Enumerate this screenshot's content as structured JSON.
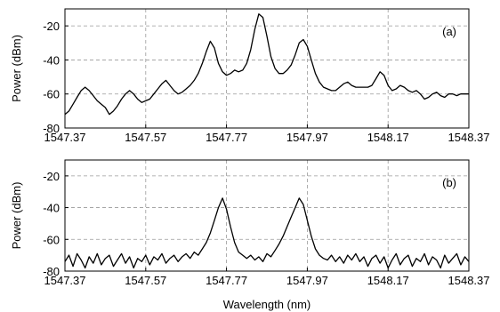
{
  "chart_data": [
    {
      "type": "line",
      "panel_label": "(a)",
      "xlabel": "",
      "ylabel": "Power (dBm)",
      "xlim": [
        1547.37,
        1548.37
      ],
      "ylim": [
        -80,
        -10
      ],
      "xticks": [
        "1547.37",
        "1547.57",
        "1547.77",
        "1547.97",
        "1548.17",
        "1548.37"
      ],
      "yticks": [
        "-20",
        "-40",
        "-60",
        "-80"
      ],
      "ytick_values": [
        -20,
        -40,
        -60,
        -80
      ],
      "grid": true,
      "series": [
        {
          "x": [
            1547.37,
            1547.38,
            1547.39,
            1547.4,
            1547.41,
            1547.42,
            1547.43,
            1547.44,
            1547.45,
            1547.46,
            1547.47,
            1547.48,
            1547.49,
            1547.5,
            1547.51,
            1547.52,
            1547.53,
            1547.54,
            1547.55,
            1547.56,
            1547.57,
            1547.58,
            1547.59,
            1547.6,
            1547.61,
            1547.62,
            1547.63,
            1547.64,
            1547.65,
            1547.66,
            1547.67,
            1547.68,
            1547.69,
            1547.7,
            1547.71,
            1547.72,
            1547.73,
            1547.74,
            1547.75,
            1547.76,
            1547.77,
            1547.78,
            1547.79,
            1547.8,
            1547.81,
            1547.82,
            1547.83,
            1547.84,
            1547.85,
            1547.86,
            1547.87,
            1547.88,
            1547.89,
            1547.9,
            1547.91,
            1547.92,
            1547.93,
            1547.94,
            1547.95,
            1547.96,
            1547.97,
            1547.98,
            1547.99,
            1548.0,
            1548.01,
            1548.02,
            1548.03,
            1548.04,
            1548.05,
            1548.06,
            1548.07,
            1548.08,
            1548.09,
            1548.1,
            1548.11,
            1548.12,
            1548.13,
            1548.14,
            1548.15,
            1548.16,
            1548.17,
            1548.18,
            1548.19,
            1548.2,
            1548.21,
            1548.22,
            1548.23,
            1548.24,
            1548.25,
            1548.26,
            1548.27,
            1548.28,
            1548.29,
            1548.3,
            1548.31,
            1548.32,
            1548.33,
            1548.34,
            1548.35,
            1548.36,
            1548.37
          ],
          "y": [
            -72,
            -70,
            -66,
            -62,
            -58,
            -56,
            -58,
            -61,
            -64,
            -66,
            -68,
            -72,
            -70,
            -67,
            -63,
            -60,
            -58,
            -60,
            -63,
            -65,
            -64,
            -63,
            -60,
            -57,
            -54,
            -52,
            -55,
            -58,
            -60,
            -59,
            -57,
            -55,
            -52,
            -48,
            -42,
            -35,
            -29,
            -33,
            -42,
            -47,
            -49,
            -48,
            -46,
            -47,
            -46,
            -42,
            -34,
            -22,
            -13,
            -15,
            -26,
            -38,
            -45,
            -48,
            -48,
            -46,
            -43,
            -37,
            -30,
            -28,
            -32,
            -40,
            -48,
            -53,
            -56,
            -57,
            -58,
            -58,
            -56,
            -54,
            -53,
            -55,
            -56,
            -56,
            -56,
            -56,
            -55,
            -51,
            -47,
            -49,
            -55,
            -58,
            -57,
            -55,
            -56,
            -58,
            -59,
            -58,
            -60,
            -63,
            -62,
            -60,
            -59,
            -61,
            -62,
            -60,
            -60,
            -61,
            -60,
            -60,
            -60
          ]
        }
      ]
    },
    {
      "type": "line",
      "panel_label": "(b)",
      "xlabel": "Wavelength (nm)",
      "ylabel": "Power (dBm)",
      "xlim": [
        1547.37,
        1548.37
      ],
      "ylim": [
        -80,
        -10
      ],
      "xticks": [
        "1547.37",
        "1547.57",
        "1547.77",
        "1547.97",
        "1548.17",
        "1548.37"
      ],
      "yticks": [
        "-20",
        "-40",
        "-60",
        "-80"
      ],
      "ytick_values": [
        -20,
        -40,
        -60,
        -80
      ],
      "grid": true,
      "series": [
        {
          "x": [
            1547.37,
            1547.38,
            1547.39,
            1547.4,
            1547.41,
            1547.42,
            1547.43,
            1547.44,
            1547.45,
            1547.46,
            1547.47,
            1547.48,
            1547.49,
            1547.5,
            1547.51,
            1547.52,
            1547.53,
            1547.54,
            1547.55,
            1547.56,
            1547.57,
            1547.58,
            1547.59,
            1547.6,
            1547.61,
            1547.62,
            1547.63,
            1547.64,
            1547.65,
            1547.66,
            1547.67,
            1547.68,
            1547.69,
            1547.7,
            1547.71,
            1547.72,
            1547.73,
            1547.74,
            1547.75,
            1547.76,
            1547.77,
            1547.78,
            1547.79,
            1547.8,
            1547.81,
            1547.82,
            1547.83,
            1547.84,
            1547.85,
            1547.86,
            1547.87,
            1547.88,
            1547.89,
            1547.9,
            1547.91,
            1547.92,
            1547.93,
            1547.94,
            1547.95,
            1547.96,
            1547.97,
            1547.98,
            1547.99,
            1548.0,
            1548.01,
            1548.02,
            1548.03,
            1548.04,
            1548.05,
            1548.06,
            1548.07,
            1548.08,
            1548.09,
            1548.1,
            1548.11,
            1548.12,
            1548.13,
            1548.14,
            1548.15,
            1548.16,
            1548.17,
            1548.18,
            1548.19,
            1548.2,
            1548.21,
            1548.22,
            1548.23,
            1548.24,
            1548.25,
            1548.26,
            1548.27,
            1548.28,
            1548.29,
            1548.3,
            1548.31,
            1548.32,
            1548.33,
            1548.34,
            1548.35,
            1548.36,
            1548.37
          ],
          "y": [
            -74,
            -70,
            -77,
            -69,
            -73,
            -78,
            -71,
            -75,
            -69,
            -76,
            -72,
            -70,
            -77,
            -73,
            -69,
            -75,
            -71,
            -78,
            -72,
            -74,
            -70,
            -76,
            -71,
            -73,
            -69,
            -75,
            -72,
            -70,
            -74,
            -71,
            -69,
            -72,
            -68,
            -70,
            -66,
            -62,
            -56,
            -48,
            -40,
            -34,
            -41,
            -52,
            -62,
            -68,
            -70,
            -72,
            -70,
            -73,
            -71,
            -74,
            -69,
            -71,
            -67,
            -63,
            -58,
            -52,
            -46,
            -40,
            -34,
            -38,
            -48,
            -58,
            -66,
            -70,
            -72,
            -73,
            -70,
            -74,
            -71,
            -75,
            -70,
            -73,
            -69,
            -74,
            -71,
            -77,
            -72,
            -70,
            -75,
            -71,
            -78,
            -73,
            -69,
            -76,
            -72,
            -70,
            -77,
            -72,
            -74,
            -69,
            -76,
            -71,
            -73,
            -78,
            -70,
            -75,
            -72,
            -69,
            -76,
            -71,
            -74
          ]
        }
      ]
    }
  ]
}
